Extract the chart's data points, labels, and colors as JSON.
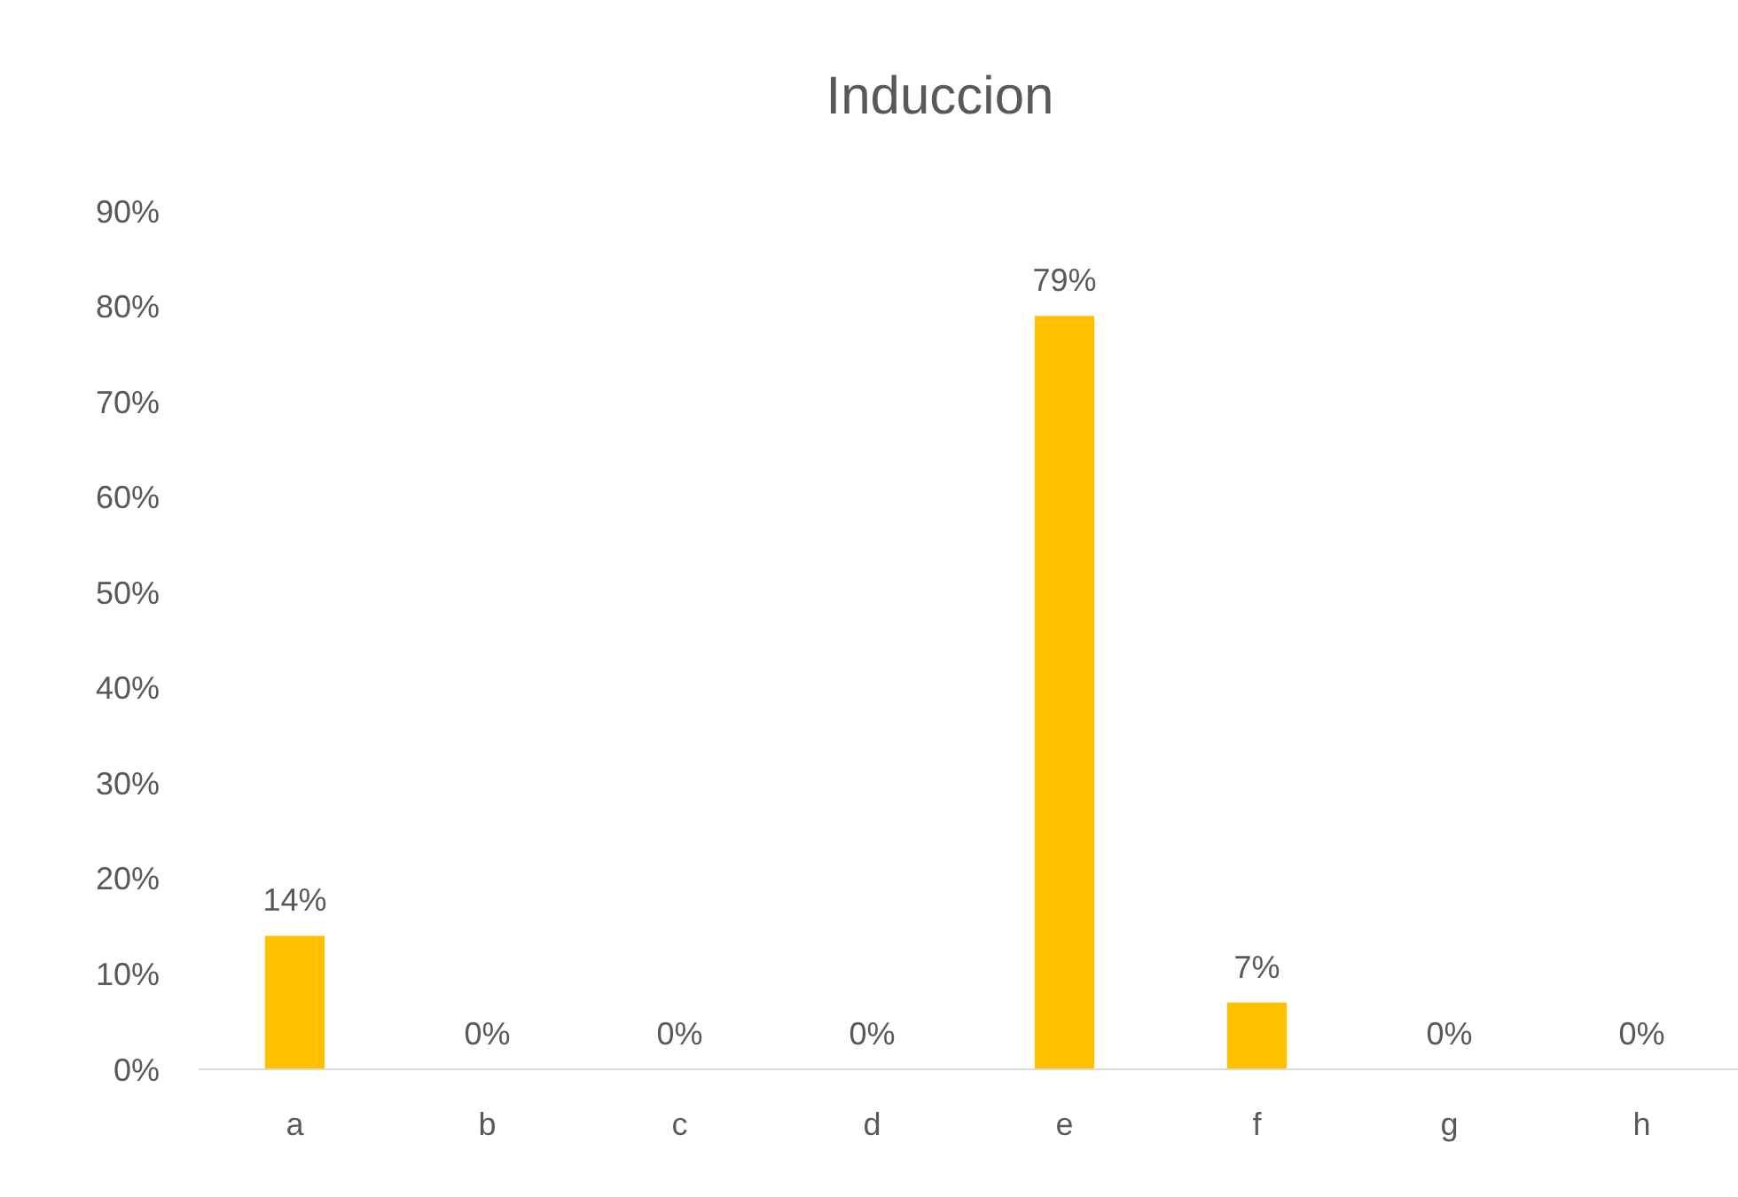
{
  "chart_data": {
    "type": "bar",
    "title": "Induccion",
    "categories": [
      "a",
      "b",
      "c",
      "d",
      "e",
      "f",
      "g",
      "h"
    ],
    "values": [
      14,
      0,
      0,
      0,
      79,
      7,
      0,
      0
    ],
    "value_labels": [
      "14%",
      "0%",
      "0%",
      "0%",
      "79%",
      "7%",
      "0%",
      "0%"
    ],
    "color": "#ffc000",
    "ylim": [
      0,
      90
    ],
    "yticks": [
      {
        "value": 0,
        "label": "0%"
      },
      {
        "value": 10,
        "label": "10%"
      },
      {
        "value": 20,
        "label": "20%"
      },
      {
        "value": 30,
        "label": "30%"
      },
      {
        "value": 40,
        "label": "40%"
      },
      {
        "value": 50,
        "label": "50%"
      },
      {
        "value": 60,
        "label": "60%"
      },
      {
        "value": 70,
        "label": "70%"
      },
      {
        "value": 80,
        "label": "80%"
      },
      {
        "value": 90,
        "label": "90%"
      }
    ],
    "grid": false
  }
}
